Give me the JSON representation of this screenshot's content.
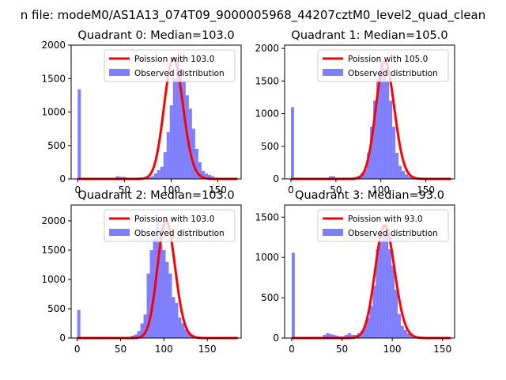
{
  "suptitle": "n file: modeM0/AS1A13_074T09_9000005968_44207cztM0_level2_quad_clean",
  "colors": {
    "poisson": "#ff0000",
    "observed": "#0000ff"
  },
  "chart_data": [
    {
      "type": "bar",
      "title": "Quadrant 0: Median=103.0",
      "legend_position": "top-right",
      "legend": [
        "Poission with 103.0",
        "Observed distribution"
      ],
      "xlim": [
        -7,
        175
      ],
      "ylim": [
        0,
        2000
      ],
      "xticks": [
        0,
        50,
        100,
        150
      ],
      "xtick_labels": [
        "0",
        "50",
        "100",
        "150"
      ],
      "yticks": [
        0,
        500,
        1000,
        1500,
        2000
      ],
      "ytick_labels": [
        "0",
        "500",
        "1000",
        "1500",
        "2000"
      ],
      "mean": 103.0,
      "poisson_scale": 1.0,
      "bin_width": 3.4,
      "bin_start": 0,
      "hist": [
        1340,
        0,
        0,
        0,
        0,
        0,
        0,
        0,
        0,
        0,
        0,
        0,
        40,
        30,
        30,
        20,
        10,
        10,
        10,
        20,
        10,
        20,
        30,
        40,
        80,
        130,
        180,
        400,
        700,
        1100,
        1500,
        1800,
        1650,
        1450,
        1250,
        1050,
        750,
        450,
        250,
        120,
        80,
        60,
        40,
        20,
        10,
        0,
        0,
        0,
        0,
        0
      ]
    },
    {
      "type": "bar",
      "title": "Quadrant 1: Median=105.0",
      "legend_position": "top-right",
      "legend": [
        "Poission with 105.0",
        "Observed distribution"
      ],
      "xlim": [
        -7,
        182
      ],
      "ylim": [
        0,
        2050
      ],
      "xticks": [
        0,
        50,
        100,
        150
      ],
      "xtick_labels": [
        "0",
        "50",
        "100",
        "150"
      ],
      "yticks": [
        0,
        500,
        1000,
        1500,
        2000
      ],
      "ytick_labels": [
        "0",
        "500",
        "1000",
        "1500",
        "2000"
      ],
      "mean": 105.0,
      "poisson_scale": 1.0,
      "bin_width": 3.52,
      "bin_start": 0,
      "hist": [
        1100,
        0,
        0,
        0,
        0,
        0,
        0,
        0,
        0,
        0,
        0,
        0,
        40,
        40,
        20,
        20,
        20,
        20,
        10,
        20,
        30,
        50,
        90,
        140,
        400,
        800,
        1200,
        1550,
        1800,
        1700,
        1500,
        1200,
        800,
        400,
        200,
        120,
        70,
        40,
        20,
        10,
        0,
        0,
        0,
        0,
        0,
        0,
        0,
        0,
        0,
        0
      ]
    },
    {
      "type": "bar",
      "title": "Quadrant 2: Median=103.0",
      "legend_position": "top-right",
      "legend": [
        "Poission with 103.0",
        "Observed distribution"
      ],
      "xlim": [
        -7,
        189
      ],
      "ylim": [
        0,
        2270
      ],
      "xticks": [
        0,
        50,
        100,
        150
      ],
      "xtick_labels": [
        "0",
        "50",
        "100",
        "150"
      ],
      "yticks": [
        0,
        500,
        1000,
        1500,
        2000
      ],
      "ytick_labels": [
        "0",
        "500",
        "1000",
        "1500",
        "2000"
      ],
      "mean": 103.0,
      "poisson_scale": 1.0,
      "bin_width": 3.64,
      "bin_start": 0,
      "hist": [
        480,
        0,
        0,
        0,
        0,
        0,
        0,
        0,
        0,
        0,
        0,
        0,
        0,
        0,
        0,
        10,
        20,
        40,
        60,
        120,
        250,
        400,
        1100,
        1500,
        1700,
        2000,
        1600,
        1500,
        1300,
        1100,
        700,
        600,
        350,
        250,
        150,
        100,
        60,
        30,
        20,
        10,
        10,
        0,
        0,
        0,
        0,
        0,
        0,
        0,
        0,
        0
      ]
    },
    {
      "type": "bar",
      "title": "Quadrant 3: Median=93.0",
      "legend_position": "top-right",
      "legend": [
        "Poission with 93.0",
        "Observed distribution"
      ],
      "xlim": [
        -7,
        162
      ],
      "ylim": [
        0,
        1650
      ],
      "xticks": [
        0,
        50,
        100,
        150
      ],
      "xtick_labels": [
        "0",
        "50",
        "100",
        "150"
      ],
      "yticks": [
        0,
        500,
        1000,
        1500
      ],
      "ytick_labels": [
        "0",
        "500",
        "1000",
        "1500"
      ],
      "mean": 93.0,
      "poisson_scale": 1.0,
      "bin_width": 3.1,
      "bin_start": 0,
      "hist": [
        1060,
        0,
        0,
        0,
        0,
        0,
        0,
        0,
        0,
        0,
        40,
        60,
        50,
        40,
        30,
        20,
        20,
        40,
        60,
        40,
        40,
        60,
        90,
        150,
        250,
        400,
        650,
        1100,
        1200,
        1300,
        1400,
        1100,
        900,
        600,
        300,
        150,
        100,
        60,
        40,
        20,
        10,
        0,
        0,
        0,
        0,
        0,
        0,
        0,
        0,
        0
      ]
    }
  ]
}
